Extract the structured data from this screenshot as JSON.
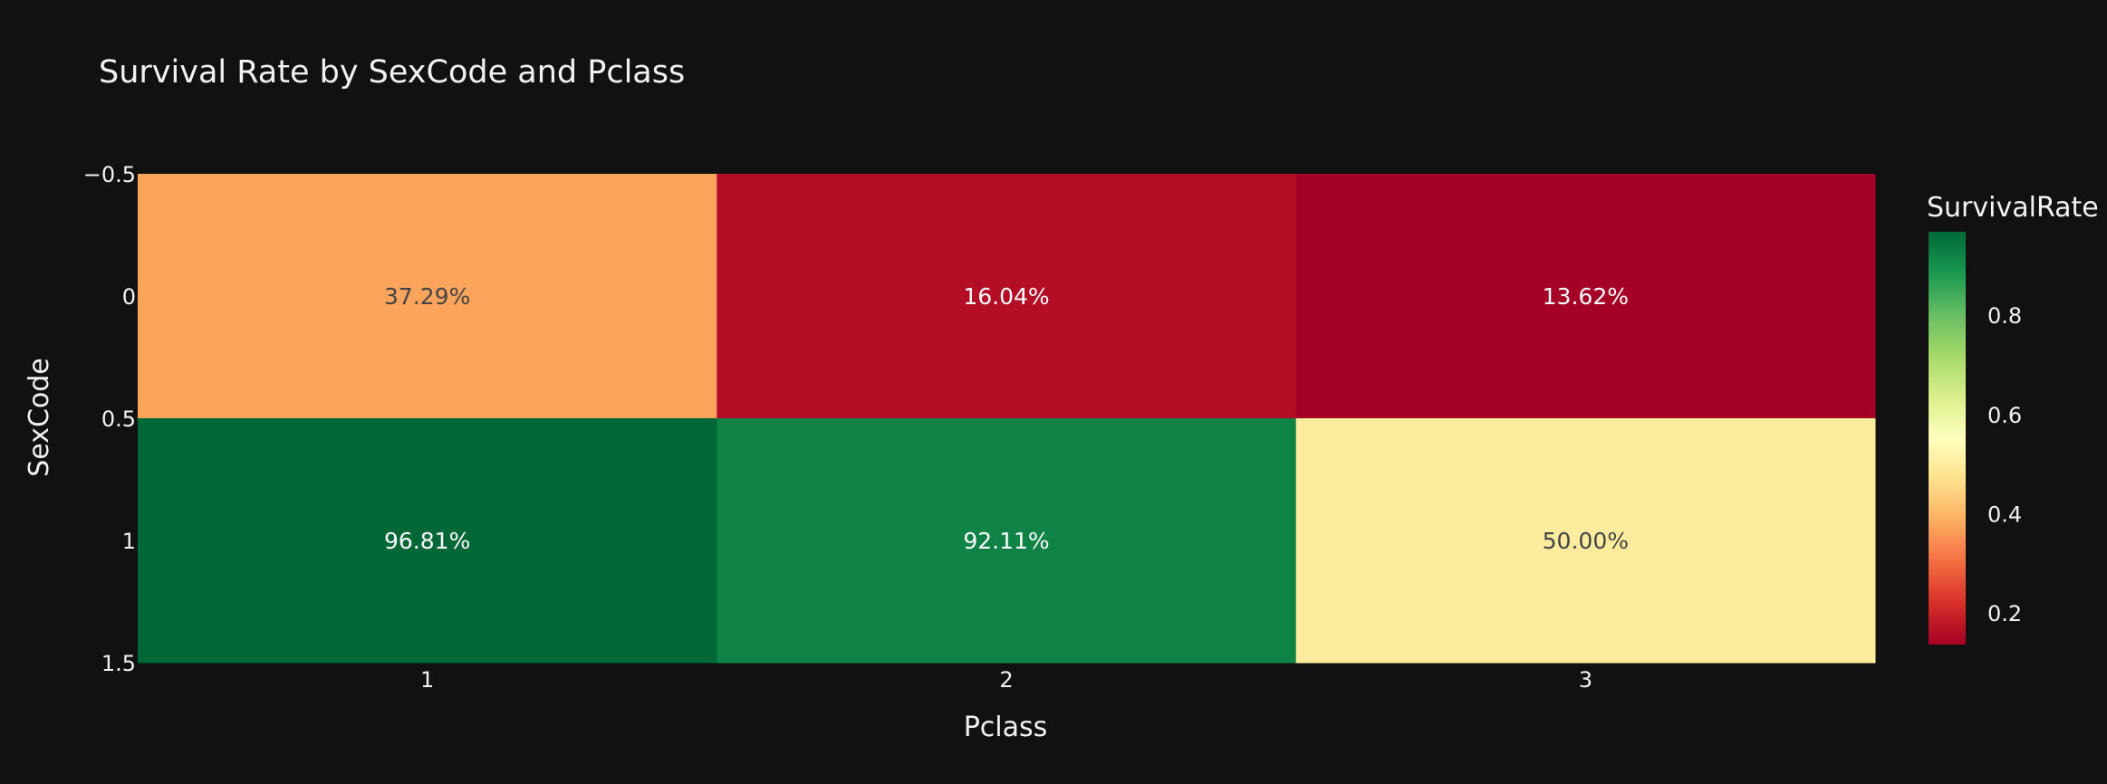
{
  "chart_data": {
    "type": "heatmap",
    "title": "Survival Rate by SexCode and Pclass",
    "xlabel": "Pclass",
    "ylabel": "SexCode",
    "x_categories": [
      "1",
      "2",
      "3"
    ],
    "y_categories": [
      "0",
      "1"
    ],
    "y_tick_labels": [
      "−0.5",
      "0",
      "0.5",
      "1",
      "1.5"
    ],
    "values": [
      [
        0.3729,
        0.1604,
        0.1362
      ],
      [
        0.9681,
        0.9211,
        0.5
      ]
    ],
    "cell_labels": [
      [
        "37.29%",
        "16.04%",
        "13.62%"
      ],
      [
        "96.81%",
        "92.11%",
        "50.00%"
      ]
    ],
    "colorbar": {
      "title": "SurvivalRate",
      "min": 0.1362,
      "max": 0.9681,
      "ticks": [
        0.2,
        0.4,
        0.6,
        0.8
      ],
      "tick_labels": [
        "0.2",
        "0.4",
        "0.6",
        "0.8"
      ],
      "colorscale": [
        "#a50026",
        "#d73027",
        "#f46d43",
        "#fdae61",
        "#fee08b",
        "#ffffbf",
        "#d9ef8b",
        "#a6d96a",
        "#66bd63",
        "#1a9850",
        "#006837"
      ]
    },
    "grid": false
  }
}
